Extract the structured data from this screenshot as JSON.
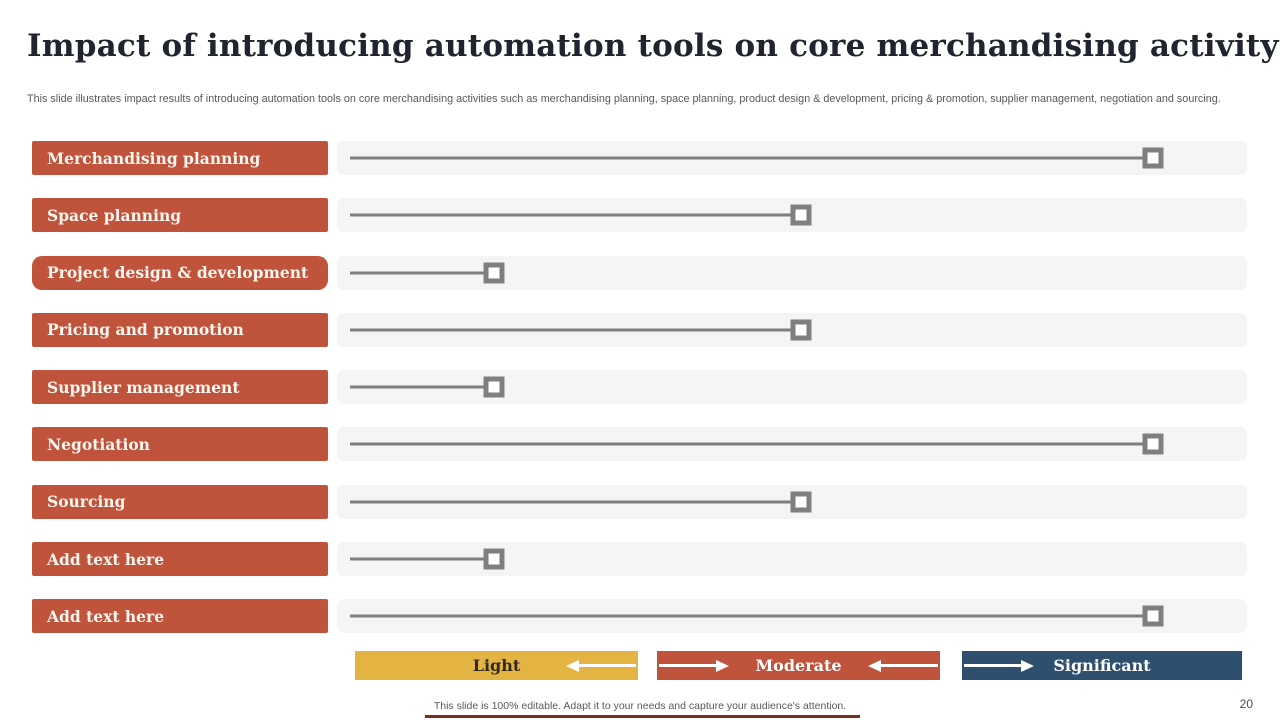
{
  "slide": {
    "title": "Impact of introducing automation tools on core merchandising activity",
    "subtitle": "This slide illustrates impact results of introducing automation tools on core merchandising activities such as merchandising planning, space planning, product design & development, pricing & promotion, supplier management, negotiation and sourcing.",
    "footer": "This slide is 100% editable. Adapt it to your needs and capture your audience's attention.",
    "page_number": "20"
  },
  "colors": {
    "red": "#c0533b",
    "yellow": "#e3b441",
    "blue": "#2f4f6f",
    "track_gray": "#7f7f7f",
    "track_bg": "#f5f5f4"
  },
  "legend": {
    "light": "Light",
    "moderate": "Moderate",
    "significant": "Significant"
  },
  "chart_data": {
    "type": "slider-scale",
    "title": "Impact of introducing automation tools on core merchandising activity",
    "categories": [
      "Merchandising planning",
      "Space planning",
      "Project design & development",
      "Pricing and promotion",
      "Supplier management",
      "Negotiation",
      "Sourcing",
      "Add text here",
      "Add text here"
    ],
    "values": [
      "Significant",
      "Moderate",
      "Light",
      "Moderate",
      "Light",
      "Significant",
      "Moderate",
      "Light",
      "Significant"
    ],
    "scale": [
      "Light",
      "Moderate",
      "Significant"
    ],
    "level_percent": {
      "Light": 17.25,
      "Moderate": 51.0,
      "Significant": 89.7
    },
    "rounded_rows": [
      2
    ],
    "legend_position": "bottom"
  }
}
